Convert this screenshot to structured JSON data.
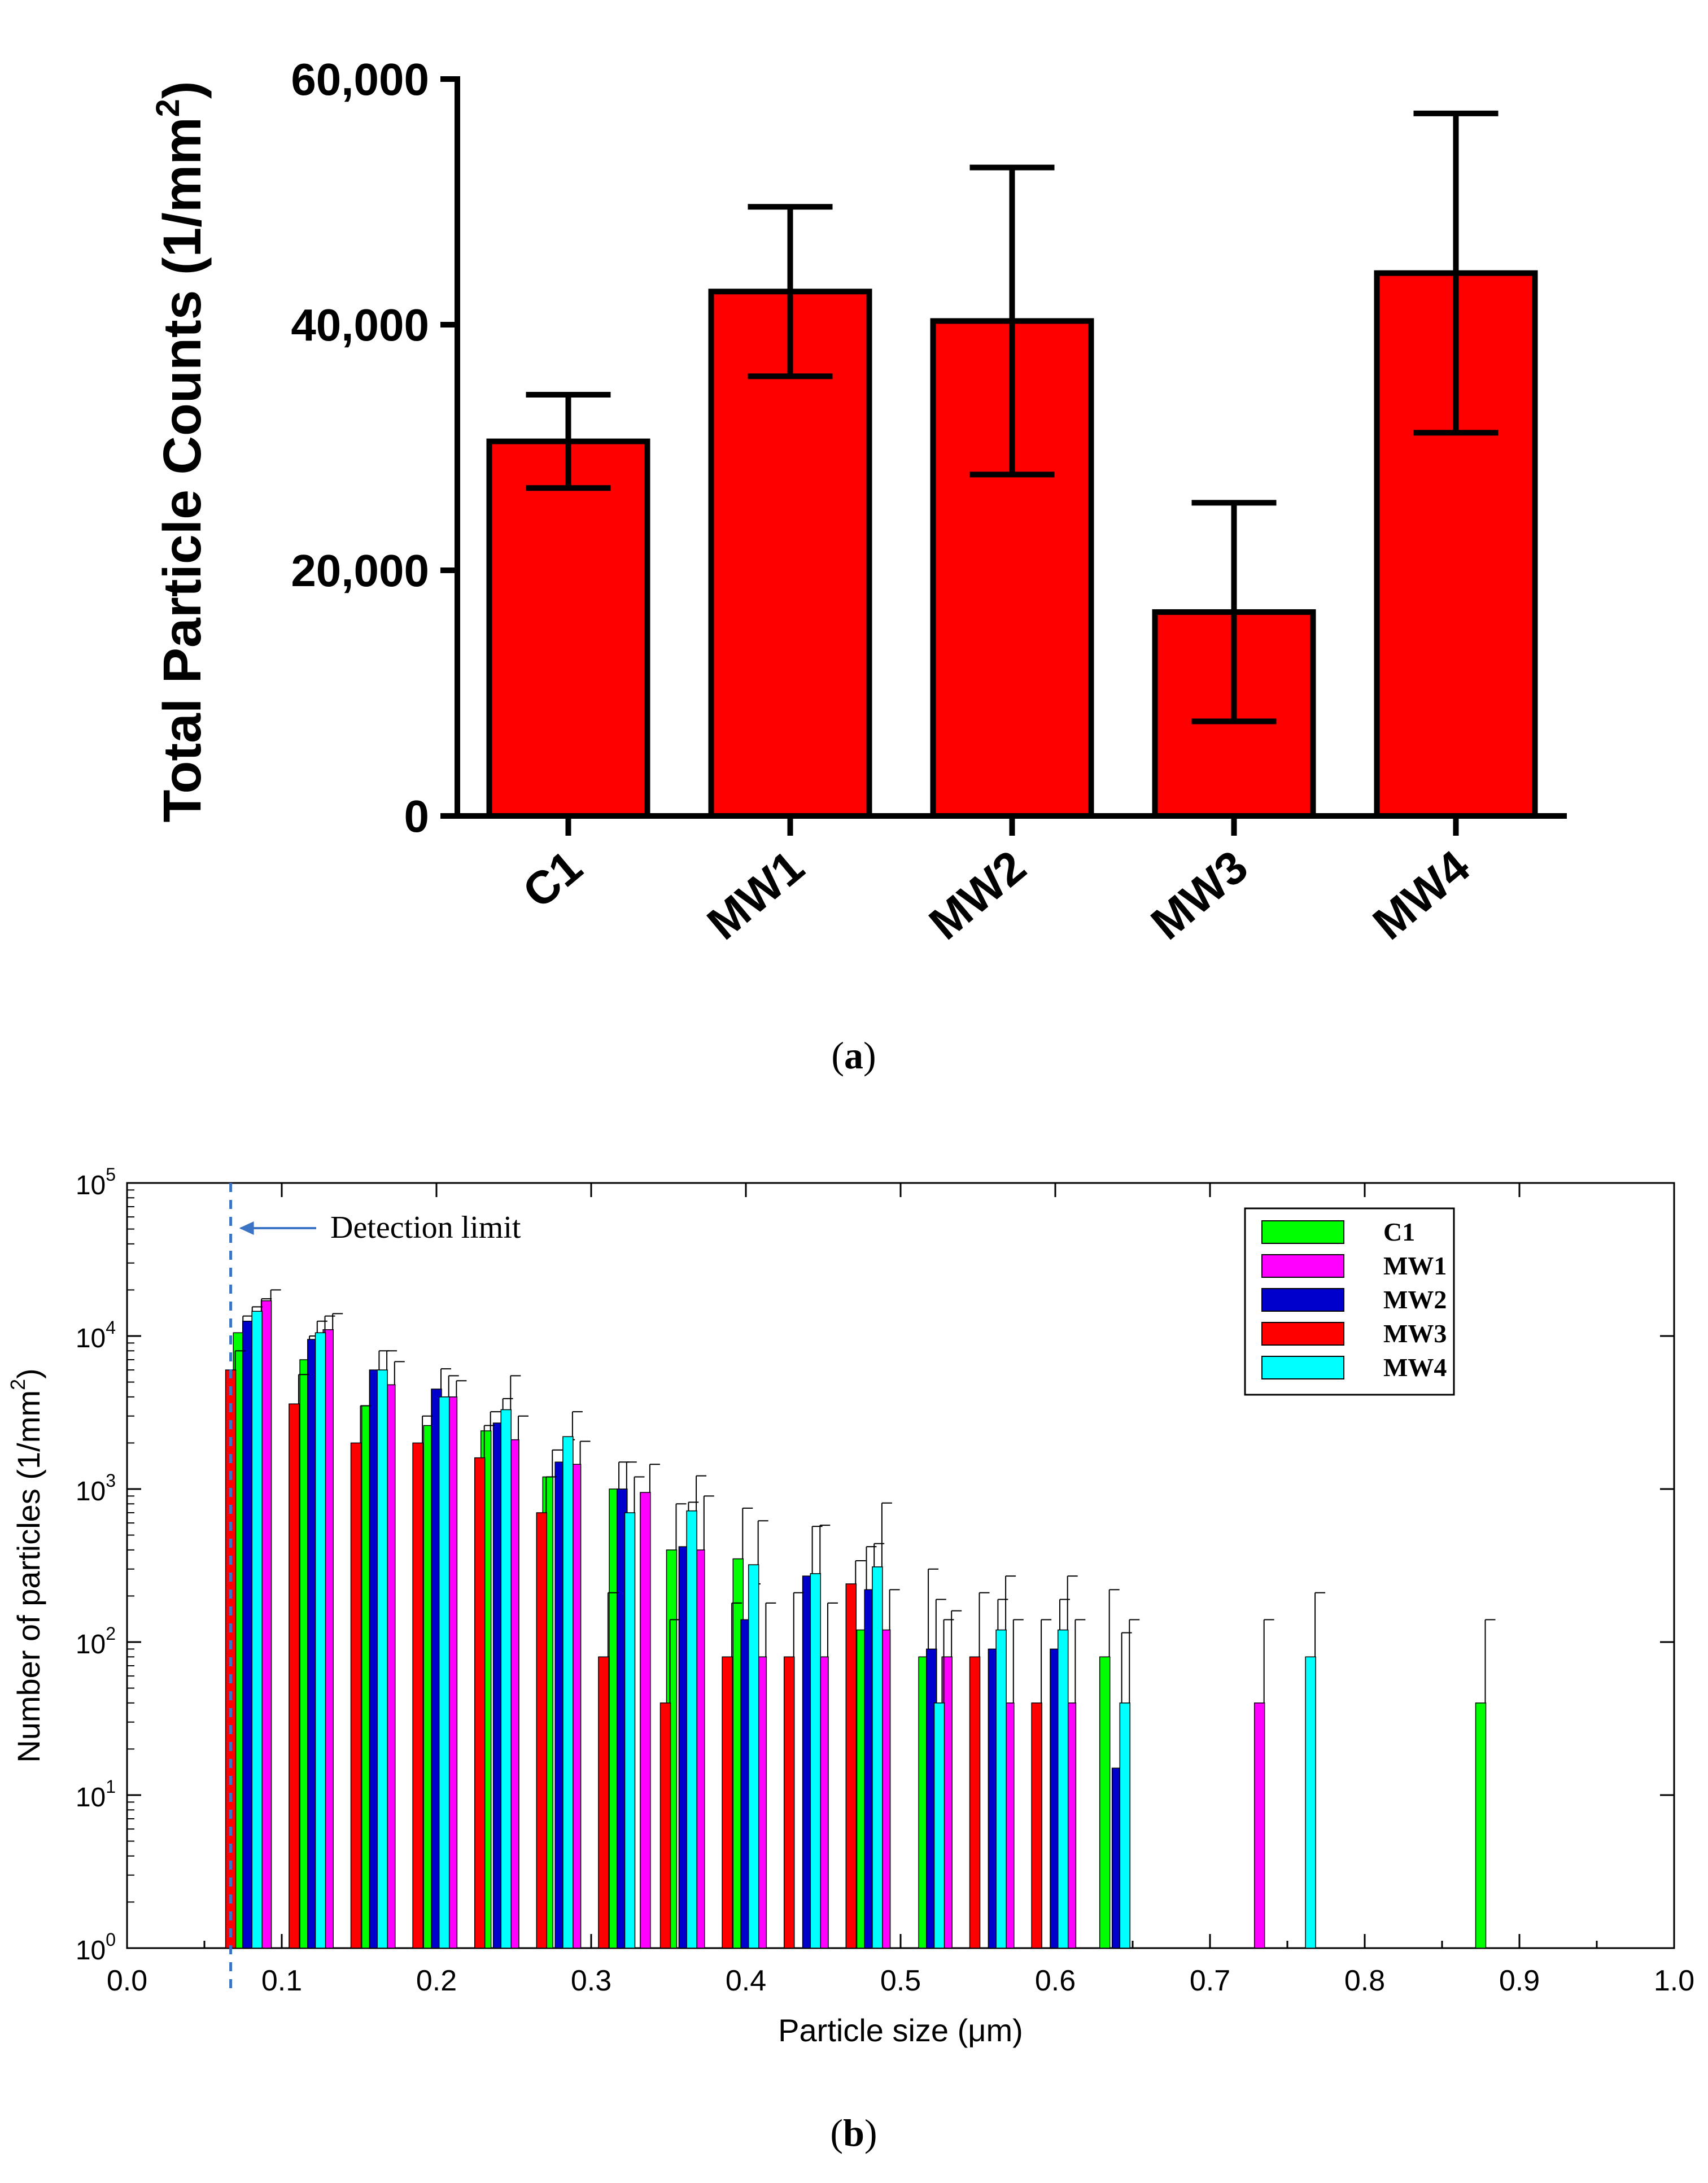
{
  "chart_data": [
    {
      "type": "bar",
      "panel_label": "(a)",
      "panel_letter": "a",
      "categories": [
        "C1",
        "MW1",
        "MW2",
        "MW3",
        "MW4"
      ],
      "values": [
        30500,
        42700,
        40300,
        16600,
        44200
      ],
      "errors": [
        3800,
        6900,
        12500,
        8900,
        13000
      ],
      "ylabel": "Total Particle Counts (1/mm",
      "ylabel_sup": "2",
      "ylabel_end": ")",
      "xlabel": "",
      "ylim": [
        0,
        60000
      ],
      "yticks": [
        0,
        20000,
        40000,
        60000
      ],
      "ytick_labels": [
        "0",
        "20,000",
        "40,000",
        "60,000"
      ],
      "bar_color": "#ff0000"
    },
    {
      "type": "bar",
      "panel_label": "(b)",
      "panel_letter": "b",
      "yscale": "log",
      "xlabel": "Particle size (μm)",
      "ylabel": "Number of particles (1/mm",
      "ylabel_sup": "2",
      "ylabel_end": ")",
      "xlim": [
        0.0,
        1.0
      ],
      "ylim": [
        1,
        100000
      ],
      "xtick_labels": [
        "0.0",
        "0.1",
        "0.2",
        "0.3",
        "0.4",
        "0.5",
        "0.6",
        "0.7",
        "0.8",
        "0.9",
        "1.0"
      ],
      "ytick_base": "10",
      "ytick_exponents": [
        "0",
        "1",
        "2",
        "3",
        "4",
        "5"
      ],
      "annotation": "Detection limit",
      "detection_limit": 0.067,
      "legend_position": "top-right",
      "series": [
        {
          "name": "C1",
          "color": "#00ff00",
          "x": [
            0.072,
            0.115,
            0.155,
            0.195,
            0.232,
            0.272,
            0.315,
            0.352,
            0.395,
            0.475,
            0.515,
            0.632,
            0.875
          ],
          "y": [
            10500,
            7000,
            3500,
            2600,
            2400,
            1200,
            1000,
            400,
            350,
            120,
            80,
            80,
            40
          ],
          "err": [
            3000,
            3000,
            2000,
            900,
            800,
            600,
            500,
            400,
            400,
            300,
            220,
            140,
            100
          ]
        },
        {
          "name": "MW1",
          "color": "#ff00ff",
          "x": [
            0.09,
            0.13,
            0.17,
            0.21,
            0.25,
            0.29,
            0.335,
            0.37,
            0.41,
            0.45,
            0.49,
            0.53,
            0.57,
            0.61,
            0.732
          ],
          "y": [
            17000,
            11000,
            4800,
            4000,
            2100,
            1450,
            950,
            400,
            80,
            80,
            120,
            80,
            40,
            40,
            40
          ],
          "err": [
            3000,
            3000,
            2000,
            1100,
            900,
            600,
            500,
            500,
            100,
            100,
            100,
            80,
            100,
            100,
            100
          ]
        },
        {
          "name": "MW2",
          "color": "#0000cc",
          "x": [
            0.078,
            0.12,
            0.16,
            0.2,
            0.24,
            0.28,
            0.32,
            0.36,
            0.4,
            0.44,
            0.48,
            0.52,
            0.56,
            0.6,
            0.64
          ],
          "y": [
            12500,
            9500,
            6000,
            4500,
            2700,
            1500,
            1000,
            420,
            140,
            270,
            220,
            90,
            90,
            90,
            15
          ],
          "err": [
            3000,
            3000,
            2000,
            1600,
            1200,
            600,
            500,
            400,
            100,
            300,
            220,
            100,
            100,
            100,
            100
          ]
        },
        {
          "name": "MW3",
          "color": "#ff0000",
          "x": [
            0.067,
            0.108,
            0.148,
            0.188,
            0.228,
            0.268,
            0.308,
            0.348,
            0.388,
            0.428,
            0.468,
            0.548,
            0.588
          ],
          "y": [
            6000,
            3600,
            2000,
            2000,
            1600,
            700,
            80,
            40,
            80,
            80,
            240,
            80,
            40
          ],
          "err": [
            2000,
            2000,
            1500,
            1000,
            1000,
            500,
            130,
            100,
            100,
            130,
            100,
            130,
            100
          ]
        },
        {
          "name": "MW4",
          "color": "#00ffff",
          "x": [
            0.084,
            0.125,
            0.165,
            0.205,
            0.245,
            0.285,
            0.325,
            0.365,
            0.405,
            0.445,
            0.485,
            0.525,
            0.565,
            0.605,
            0.645,
            0.765
          ],
          "y": [
            14500,
            10500,
            6000,
            4000,
            3300,
            2200,
            700,
            720,
            320,
            280,
            310,
            40,
            120,
            120,
            40,
            80
          ],
          "err": [
            3000,
            3000,
            2000,
            1500,
            2200,
            1000,
            500,
            500,
            300,
            300,
            500,
            100,
            150,
            150,
            100,
            130
          ]
        }
      ]
    }
  ]
}
